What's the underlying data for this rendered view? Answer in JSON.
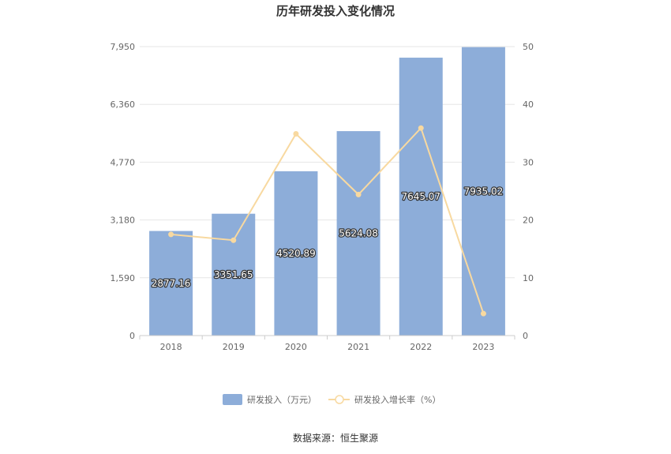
{
  "chart_data": {
    "type": "bar",
    "title": "历年研发投入变化情况",
    "categories": [
      "2018",
      "2019",
      "2020",
      "2021",
      "2022",
      "2023"
    ],
    "series": [
      {
        "name": "研发投入（万元）",
        "type": "bar",
        "axis": "left",
        "color": "#8dadd9",
        "values": [
          2877.16,
          3351.65,
          4520.89,
          5624.08,
          7645.07,
          7935.02
        ],
        "labels": [
          "2877.16",
          "3351.65",
          "4520.89",
          "5624.08",
          "7645.07",
          "7935.02"
        ]
      },
      {
        "name": "研发投入增长率（%）",
        "type": "line",
        "axis": "right",
        "color": "#f8d9a0",
        "values": [
          17.5,
          16.5,
          34.9,
          24.4,
          35.9,
          3.8
        ]
      }
    ],
    "y_left": {
      "ylim": [
        0,
        7950
      ],
      "ticks": [
        "0",
        "1,590",
        "3,180",
        "4,770",
        "6,360",
        "7,950"
      ]
    },
    "y_right": {
      "ylim": [
        0,
        50
      ],
      "ticks": [
        "0",
        "10",
        "20",
        "30",
        "40",
        "50"
      ]
    },
    "grid": true,
    "legend_position": "bottom"
  },
  "source": "数据来源：恒生聚源"
}
